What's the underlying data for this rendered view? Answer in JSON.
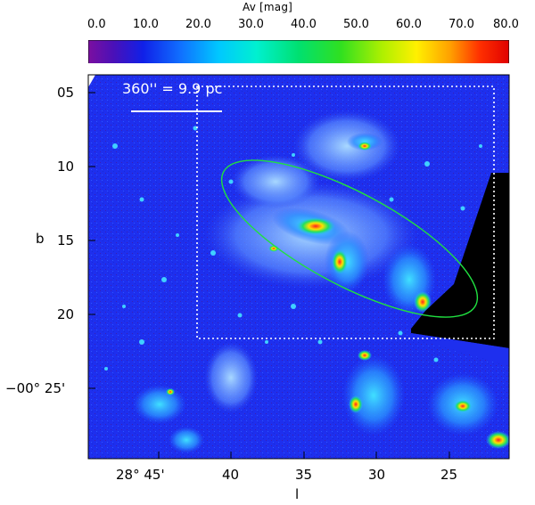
{
  "colorbar": {
    "title": "Av [mag]",
    "ticks": [
      "0.0",
      "10.0",
      "20.0",
      "30.0",
      "40.0",
      "50.0",
      "60.0",
      "70.0",
      "80.0"
    ]
  },
  "scale_bar": {
    "text": "360'' = 9.9 pc"
  },
  "axes": {
    "xlabel": "l",
    "ylabel": "b",
    "xticks": [
      "28° 45'",
      "40",
      "35",
      "30",
      "25"
    ],
    "yticks": [
      "05",
      "10",
      "15",
      "20",
      "−00° 25'"
    ]
  },
  "colors": {
    "background_map": "#1d2cf0",
    "ellipse": "#20e040",
    "outline_box": "#ffffff",
    "masked_region": "#000000"
  }
}
